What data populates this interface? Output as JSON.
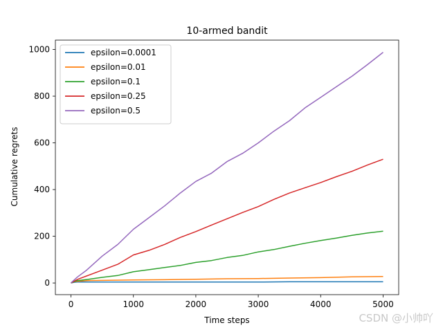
{
  "watermark": "CSDN @小帅吖",
  "chart_data": {
    "type": "line",
    "title": "10-armed bandit",
    "xlabel": "Time steps",
    "ylabel": "Cumulative regrets",
    "xlim": [
      -250,
      5250
    ],
    "ylim": [
      -50,
      1040
    ],
    "xticks": [
      0,
      1000,
      2000,
      3000,
      4000,
      5000
    ],
    "yticks": [
      0,
      200,
      400,
      600,
      800,
      1000
    ],
    "grid": false,
    "legend_position": "upper left",
    "series": [
      {
        "name": "epsilon=0.0001",
        "color": "#1f77b4",
        "x": [
          0,
          50,
          100,
          250,
          500,
          1000,
          1500,
          2000,
          2500,
          3000,
          3500,
          4000,
          4500,
          5000
        ],
        "y": [
          0,
          3,
          4,
          4,
          4,
          4,
          4,
          4,
          4,
          4,
          5,
          5,
          5,
          5
        ]
      },
      {
        "name": "epsilon=0.01",
        "color": "#ff7f0e",
        "x": [
          0,
          50,
          100,
          250,
          500,
          1000,
          1500,
          2000,
          2500,
          3000,
          3500,
          4000,
          4500,
          5000
        ],
        "y": [
          0,
          5,
          7,
          10,
          11,
          13,
          14,
          16,
          18,
          19,
          21,
          23,
          26,
          28
        ]
      },
      {
        "name": "epsilon=0.1",
        "color": "#2ca02c",
        "x": [
          0,
          100,
          250,
          500,
          750,
          1000,
          1250,
          1500,
          1750,
          2000,
          2250,
          2500,
          2750,
          3000,
          3250,
          3500,
          3750,
          4000,
          4250,
          4500,
          4750,
          5000
        ],
        "y": [
          0,
          10,
          15,
          24,
          32,
          48,
          57,
          66,
          75,
          88,
          96,
          109,
          118,
          133,
          143,
          157,
          170,
          182,
          192,
          204,
          214,
          222
        ]
      },
      {
        "name": "epsilon=0.25",
        "color": "#d62728",
        "x": [
          0,
          100,
          250,
          500,
          750,
          1000,
          1250,
          1500,
          1750,
          2000,
          2250,
          2500,
          2750,
          3000,
          3250,
          3500,
          3750,
          4000,
          4250,
          4500,
          4750,
          5000
        ],
        "y": [
          0,
          15,
          30,
          55,
          80,
          120,
          140,
          165,
          195,
          220,
          248,
          275,
          302,
          327,
          358,
          385,
          408,
          430,
          455,
          478,
          505,
          530
        ]
      },
      {
        "name": "epsilon=0.5",
        "color": "#9467bd",
        "x": [
          0,
          100,
          250,
          500,
          750,
          1000,
          1250,
          1500,
          1750,
          2000,
          2250,
          2500,
          2750,
          3000,
          3250,
          3500,
          3750,
          4000,
          4250,
          4500,
          4750,
          5000
        ],
        "y": [
          0,
          25,
          55,
          115,
          165,
          230,
          280,
          330,
          385,
          435,
          470,
          520,
          555,
          600,
          650,
          695,
          750,
          795,
          840,
          885,
          935,
          988
        ]
      }
    ]
  }
}
